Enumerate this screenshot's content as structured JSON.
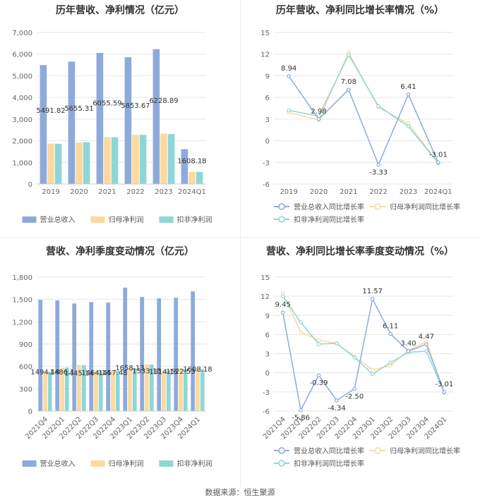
{
  "source": "数据来源：恒生聚源",
  "colors": {
    "revenue": "#8eaadb",
    "net_profit": "#fdd9a0",
    "deducted_profit": "#8fd6d6"
  },
  "chart_data": [
    {
      "id": "annual-revenue-profit",
      "type": "bar",
      "title": "历年营收、净利情况（亿元）",
      "categories": [
        "2019",
        "2020",
        "2021",
        "2022",
        "2023",
        "2024Q1"
      ],
      "ylim": [
        0,
        7000
      ],
      "yticks": [
        "0",
        "1,000",
        "2,000",
        "3,000",
        "4,000",
        "5,000",
        "6,000",
        "7,000"
      ],
      "ytick_values": [
        0,
        1000,
        2000,
        3000,
        4000,
        5000,
        6000,
        7000
      ],
      "grid": true,
      "legend_position": "bottom",
      "series": [
        {
          "name": "营业总收入",
          "color": "#8eaadb",
          "values": [
            5491.82,
            5655.31,
            6055.59,
            5853.67,
            6228.89,
            1608.18
          ],
          "labels": [
            "5491.82",
            "5655.31",
            "6055.59",
            "5853.67",
            "6228.89",
            "1608.18"
          ]
        },
        {
          "name": "归母净利润",
          "color": "#fdd9a0",
          "values": [
            1870,
            1920,
            2170,
            2270,
            2330,
            560
          ]
        },
        {
          "name": "扣非净利润",
          "color": "#8fd6d6",
          "values": [
            1860,
            1930,
            2160,
            2270,
            2310,
            560
          ]
        }
      ]
    },
    {
      "id": "annual-growth",
      "type": "line",
      "title": "历年营收、净利同比增长率情况（%）",
      "categories": [
        "2019",
        "2020",
        "2021",
        "2022",
        "2023",
        "2024Q1"
      ],
      "ylim": [
        -6,
        15
      ],
      "yticks": [
        "-6",
        "-3",
        "0",
        "3",
        "6",
        "9",
        "12",
        "15"
      ],
      "ytick_values": [
        -6,
        -3,
        0,
        3,
        6,
        9,
        12,
        15
      ],
      "grid": true,
      "legend_position": "bottom",
      "series": [
        {
          "name": "营业总收入同比增长率",
          "color": "#8eaadb",
          "values": [
            8.94,
            2.98,
            7.08,
            -3.33,
            6.41,
            -3.01
          ],
          "labels": [
            "8.94",
            "2.98",
            "7.08",
            "-3.33",
            "6.41",
            "-3.01"
          ]
        },
        {
          "name": "归母净利润同比增长率",
          "color": "#fdd9a0",
          "values": [
            3.9,
            2.9,
            12.2,
            4.6,
            2.4,
            -3.1
          ]
        },
        {
          "name": "扣非净利润同比增长率",
          "color": "#8fd6d6",
          "values": [
            4.2,
            3.4,
            11.9,
            4.8,
            2.0,
            -3.1
          ]
        }
      ]
    },
    {
      "id": "quarterly-revenue-profit",
      "type": "bar",
      "title": "营收、净利季度变动情况（亿元）",
      "categories": [
        "2021Q4",
        "2022Q1",
        "2022Q2",
        "2022Q3",
        "2022Q4",
        "2023Q1",
        "2023Q2",
        "2023Q3",
        "2023Q4",
        "2024Q1"
      ],
      "ylim": [
        0,
        1800
      ],
      "yticks": [
        "0",
        "300",
        "600",
        "900",
        "1,200",
        "1,500",
        "1,800"
      ],
      "ytick_values": [
        0,
        300,
        600,
        900,
        1200,
        1500,
        1800
      ],
      "grid": true,
      "legend_position": "bottom",
      "series": [
        {
          "name": "营业总收入",
          "color": "#8eaadb",
          "values": [
            1494.14,
            1486.1,
            1445.14,
            1464.14,
            1457.48,
            1658.13,
            1533.15,
            1514.15,
            1522.53,
            1608.18
          ],
          "labels": [
            "1494.14",
            "1486.1",
            "1445.14",
            "1464.14",
            "1457.48",
            "1658.13",
            "1533.15",
            "1514.15",
            "1522.53",
            "1608.18"
          ]
        },
        {
          "name": "归母净利润",
          "color": "#fdd9a0",
          "values": [
            530,
            580,
            620,
            540,
            545,
            575,
            630,
            545,
            570,
            560
          ]
        },
        {
          "name": "扣非净利润",
          "color": "#8fd6d6",
          "values": [
            530,
            585,
            615,
            535,
            540,
            575,
            625,
            545,
            565,
            560
          ]
        }
      ]
    },
    {
      "id": "quarterly-growth",
      "type": "line",
      "title": "营收、净利同比增长率季度变动情况（%）",
      "categories": [
        "2021Q4",
        "2022Q1",
        "2022Q2",
        "2022Q3",
        "2022Q4",
        "2023Q1",
        "2023Q2",
        "2023Q3",
        "2023Q4",
        "2024Q1"
      ],
      "ylim": [
        -6,
        15
      ],
      "yticks": [
        "-6",
        "-3",
        "0",
        "3",
        "6",
        "9",
        "12",
        "15"
      ],
      "ytick_values": [
        -6,
        -3,
        0,
        3,
        6,
        9,
        12,
        15
      ],
      "grid": true,
      "legend_position": "bottom",
      "series": [
        {
          "name": "营业总收入同比增长率",
          "color": "#8eaadb",
          "values": [
            9.45,
            -5.86,
            -0.39,
            -4.34,
            -2.5,
            11.57,
            6.11,
            3.4,
            4.47,
            -3.01
          ],
          "labels": [
            "9.45",
            "-5.86",
            "-0.39",
            "-4.34",
            "-2.50",
            "11.57",
            "6.11",
            "3.40",
            "4.47",
            "-3.01"
          ]
        },
        {
          "name": "归母净利润同比增长率",
          "color": "#fdd9a0",
          "values": [
            12.4,
            6.4,
            5.1,
            4.6,
            2.5,
            0.5,
            1.1,
            3.5,
            4.9,
            -3.1
          ]
        },
        {
          "name": "扣非净利润同比增长率",
          "color": "#8fd6d6",
          "values": [
            12.0,
            7.9,
            4.5,
            4.6,
            2.4,
            -0.2,
            1.6,
            3.2,
            3.4,
            -3.1
          ]
        }
      ]
    }
  ]
}
